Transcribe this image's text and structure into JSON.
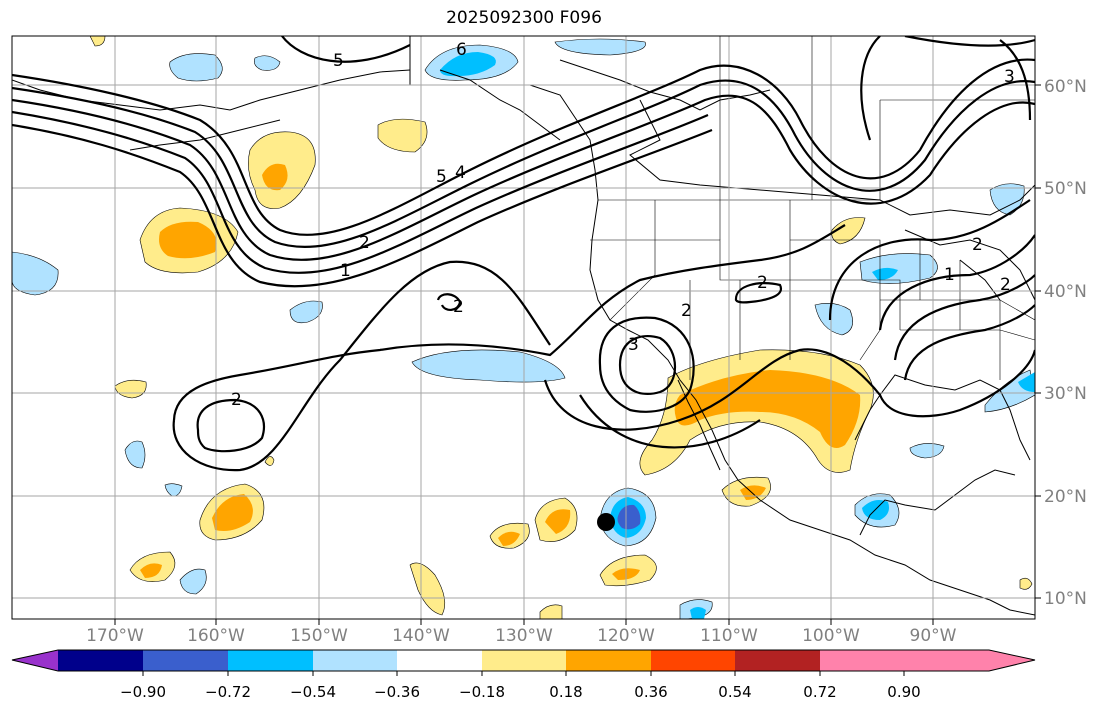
{
  "title": "2025092300 F096",
  "map": {
    "lat_labels": [
      "60°N",
      "50°N",
      "40°N",
      "30°N",
      "20°N",
      "10°N"
    ],
    "lon_labels": [
      "170°W",
      "160°W",
      "150°W",
      "140°W",
      "130°W",
      "120°W",
      "110°W",
      "100°W",
      "90°W"
    ],
    "contour_labels": [
      "5",
      "6",
      "3",
      "5",
      "4",
      "2",
      "1",
      "2",
      "2",
      "2",
      "3",
      "2",
      "1",
      "2",
      "2"
    ],
    "marker": "storm-center-dot"
  },
  "colorbar": {
    "ticks": [
      "−0.90",
      "−0.72",
      "−0.54",
      "−0.36",
      "−0.18",
      "0.18",
      "0.36",
      "0.54",
      "0.72",
      "0.90"
    ],
    "colors": [
      "#9932cc",
      "#00008b",
      "#3a5fcd",
      "#00bfff",
      "#b0e2ff",
      "#ffffff",
      "#ffec8b",
      "#ffa500",
      "#ff4500",
      "#b22222",
      "#ff82ab"
    ]
  }
}
